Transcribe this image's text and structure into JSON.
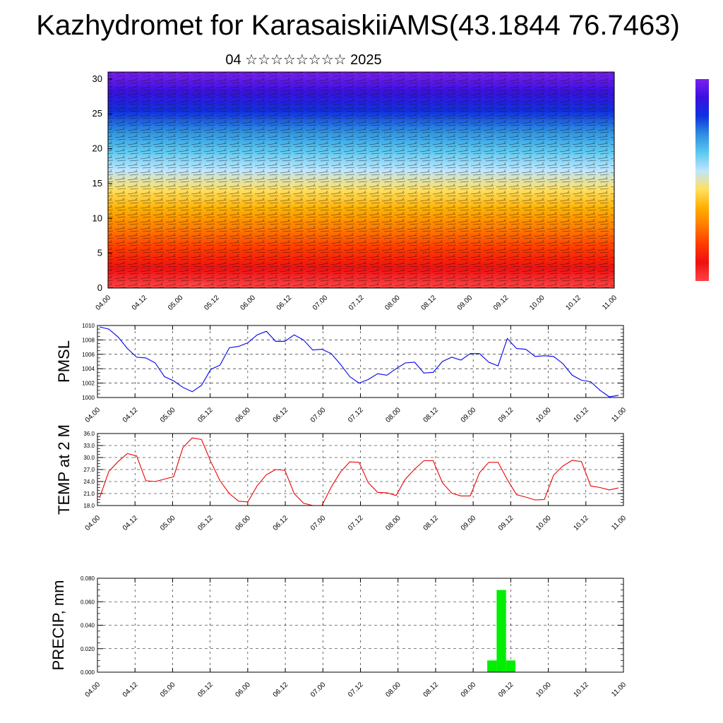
{
  "title": "Kazhydromet for KarasaiskiiAMS(43.1844 76.7463)",
  "subtitle": "04 ☆☆☆☆☆☆☆☆ 2025",
  "x_ticks": [
    "04.00",
    "04.12",
    "05.00",
    "05.12",
    "06.00",
    "06.12",
    "07.00",
    "07.12",
    "08.00",
    "08.12",
    "09.00",
    "09.12",
    "10.00",
    "10.12",
    "11.00"
  ],
  "colors": {
    "pmsl": "#0000ee",
    "temp": "#ee0000",
    "precip": "#00ee00",
    "top_stops": [
      "#ff4444",
      "#ee1111",
      "#ff3a00",
      "#ff7a00",
      "#ffb000",
      "#ffe060",
      "#bfe6ff",
      "#5ac8f0",
      "#2d8fe0",
      "#1030e0",
      "#3a10e0",
      "#7a20f0"
    ]
  },
  "chart_data": [
    {
      "type": "heatmap",
      "title": "",
      "ylim": [
        0,
        31
      ],
      "y_ticks": [
        0,
        5,
        10,
        15,
        20,
        25,
        30
      ],
      "x_ticks": [
        "04.00",
        "04.12",
        "05.00",
        "05.12",
        "06.00",
        "06.12",
        "07.00",
        "07.12",
        "08.00",
        "08.12",
        "09.00",
        "09.12",
        "10.00",
        "10.12",
        "11.00"
      ],
      "colorbar": "right",
      "overlay": "wind barbs"
    },
    {
      "type": "line",
      "ylabel": "PMSL",
      "ylim": [
        1000,
        1010
      ],
      "y_ticks": [
        "1000",
        "1002",
        "1004",
        "1006",
        "1008",
        "1010"
      ],
      "x_ticks": [
        "04.00",
        "04.12",
        "05.00",
        "05.12",
        "06.00",
        "06.12",
        "07.00",
        "07.12",
        "08.00",
        "08.12",
        "09.00",
        "09.12",
        "10.00",
        "10.12",
        "11.00"
      ],
      "grid": true,
      "series": [
        {
          "values": [
            1009.8,
            1009.5,
            1008.4,
            1006.8,
            1005.6,
            1005.5,
            1004.8,
            1002.9,
            1002.3,
            1001.4,
            1000.8,
            1001.7,
            1003.9,
            1004.5,
            1006.9,
            1007.1,
            1007.6,
            1008.7,
            1009.2,
            1007.8,
            1007.8,
            1008.7,
            1008.0,
            1006.6,
            1006.7,
            1006.1,
            1004.6,
            1002.9,
            1002.0,
            1002.5,
            1003.3,
            1003.1,
            1004.0,
            1004.8,
            1004.9,
            1003.4,
            1003.5,
            1005.0,
            1005.6,
            1005.2,
            1006.1,
            1006.1,
            1004.9,
            1004.4,
            1008.2,
            1006.8,
            1006.7,
            1005.7,
            1005.8,
            1005.7,
            1004.7,
            1003.1,
            1002.4,
            1002.2,
            1001.0,
            1000.1,
            1000.3
          ]
        }
      ]
    },
    {
      "type": "line",
      "ylabel": "TEMP at 2 M",
      "ylim": [
        18,
        36
      ],
      "y_ticks": [
        "18.0",
        "21.0",
        "24.0",
        "27.0",
        "30.0",
        "33.0",
        "36.0"
      ],
      "x_ticks": [
        "04.00",
        "04.12",
        "05.00",
        "05.12",
        "06.00",
        "06.12",
        "07.00",
        "07.12",
        "08.00",
        "08.12",
        "09.00",
        "09.12",
        "10.00",
        "10.12",
        "11.00"
      ],
      "grid": true,
      "series": [
        {
          "values": [
            19.9,
            26.5,
            29.0,
            31.0,
            30.4,
            24.2,
            24.0,
            24.6,
            25.2,
            32.5,
            34.9,
            34.5,
            29.0,
            24.2,
            21.0,
            19.1,
            18.9,
            22.9,
            25.7,
            27.0,
            26.8,
            21.0,
            18.6,
            18.0,
            18.0,
            22.6,
            26.4,
            28.9,
            28.8,
            23.7,
            21.3,
            21.2,
            20.5,
            24.6,
            27.1,
            29.2,
            29.2,
            23.7,
            21.1,
            20.4,
            20.4,
            26.2,
            28.8,
            28.8,
            24.5,
            20.7,
            20.1,
            19.4,
            19.5,
            25.6,
            27.9,
            29.3,
            29.0,
            22.9,
            22.5,
            21.9,
            22.4
          ]
        }
      ]
    },
    {
      "type": "bar",
      "ylabel": "PRECIP, mm",
      "ylim": [
        0,
        0.08
      ],
      "y_ticks": [
        "0.000",
        "0.020",
        "0.040",
        "0.060",
        "0.080"
      ],
      "x_ticks": [
        "04.00",
        "04.12",
        "05.00",
        "05.12",
        "06.00",
        "06.12",
        "07.00",
        "07.12",
        "08.00",
        "08.12",
        "09.00",
        "09.12",
        "10.00",
        "10.12",
        "11.00"
      ],
      "grid": true,
      "bars": [
        {
          "x": "09.06",
          "value": 0.01
        },
        {
          "x": "09.09",
          "value": 0.07
        },
        {
          "x": "09.12",
          "value": 0.01
        }
      ]
    }
  ]
}
